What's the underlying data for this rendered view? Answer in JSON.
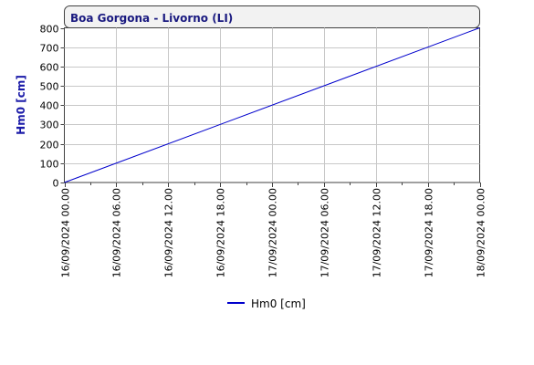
{
  "chart_data": {
    "type": "line",
    "title": "Boa Gorgona - Livorno (LI)",
    "ylabel": "Hm0 [cm]",
    "xlabel": "",
    "ylim": [
      0,
      800
    ],
    "yticks": [
      0,
      100,
      200,
      300,
      400,
      500,
      600,
      700,
      800
    ],
    "xticks": [
      "16/09/2024 00.00",
      "16/09/2024 06.00",
      "16/09/2024 12.00",
      "16/09/2024 18.00",
      "17/09/2024 00.00",
      "17/09/2024 06.00",
      "17/09/2024 12.00",
      "17/09/2024 18.00",
      "18/09/2024 00.00"
    ],
    "grid": true,
    "legend_position": "bottom",
    "series": [
      {
        "name": "Hm0 [cm]",
        "color": "#0000cc",
        "x": [
          "16/09/2024 00.00",
          "18/09/2024 00.00"
        ],
        "values": [
          0,
          800
        ]
      }
    ]
  }
}
